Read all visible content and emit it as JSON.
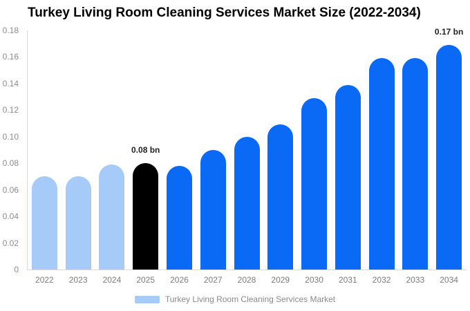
{
  "chart_data": {
    "type": "bar",
    "title": "Turkey Living Room Cleaning Services Market Size (2022-2034)",
    "xlabel": "",
    "ylabel": "",
    "unit": "bn",
    "categories": [
      "2022",
      "2023",
      "2024",
      "2025",
      "2026",
      "2027",
      "2028",
      "2029",
      "2030",
      "2031",
      "2032",
      "2033",
      "2034"
    ],
    "values": [
      0.07,
      0.07,
      0.079,
      0.08,
      0.078,
      0.09,
      0.1,
      0.109,
      0.129,
      0.139,
      0.159,
      0.159,
      0.169
    ],
    "bar_colors": [
      "#a6cbf8",
      "#a6cbf8",
      "#a6cbf8",
      "#000000",
      "#0a6af6",
      "#0a6af6",
      "#0a6af6",
      "#0a6af6",
      "#0a6af6",
      "#0a6af6",
      "#0a6af6",
      "#0a6af6",
      "#0a6af6"
    ],
    "ylim": [
      0,
      0.18
    ],
    "y_ticks": [
      "0.18",
      "0.16",
      "0.14",
      "0.12",
      "0.10",
      "0.08",
      "0.06",
      "0.04",
      "0.02",
      "0"
    ],
    "grid": false,
    "legend_position": "bottom",
    "annotations": [
      {
        "category": "2025",
        "text": "0.08 bn"
      },
      {
        "category": "2034",
        "text": "0.17 bn"
      }
    ],
    "legend": [
      {
        "label": "Turkey Living Room Cleaning Services Market",
        "swatch": "#a6cbf8"
      }
    ]
  }
}
